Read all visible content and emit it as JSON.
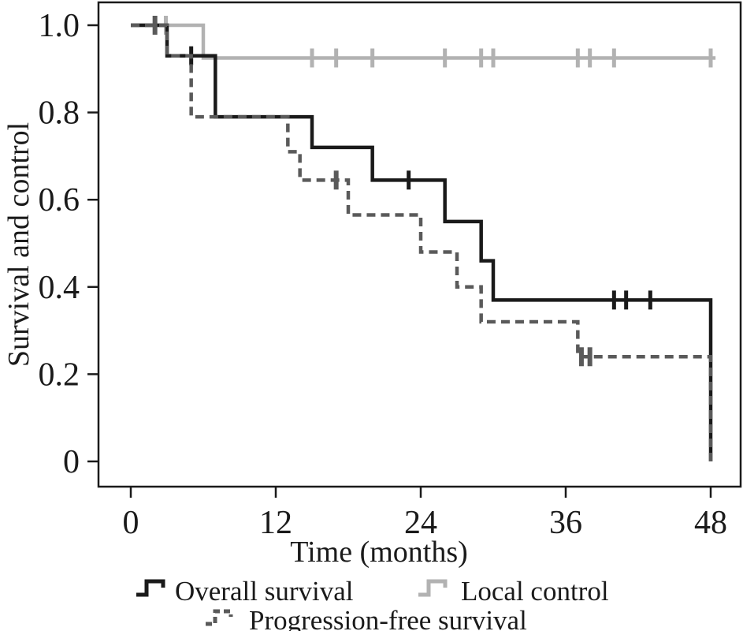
{
  "figure": {
    "background": "#ffffff",
    "colors": {
      "overall_survival": "#1a1a1a",
      "local_control": "#b2b2b2",
      "progression_free_survival": "#5a5a5a"
    }
  },
  "chart_data": {
    "type": "line",
    "subtype": "kaplan-meier-step",
    "title": "",
    "xlabel": "Time (months)",
    "ylabel": "Survival and control",
    "xlim": [
      0,
      48
    ],
    "ylim": [
      0,
      1.0
    ],
    "grid": false,
    "legend_position": "bottom",
    "x_ticks": [
      {
        "value": 0,
        "label": "0"
      },
      {
        "value": 12,
        "label": "12"
      },
      {
        "value": 24,
        "label": "24"
      },
      {
        "value": 36,
        "label": "36"
      },
      {
        "value": 48,
        "label": "48"
      }
    ],
    "y_ticks": [
      {
        "value": 1.0,
        "label": "1.0"
      },
      {
        "value": 0.8,
        "label": "0.8"
      },
      {
        "value": 0.6,
        "label": "0.6"
      },
      {
        "value": 0.4,
        "label": "0.4"
      },
      {
        "value": 0.2,
        "label": "0.2"
      },
      {
        "value": 0.0,
        "label": "0"
      }
    ],
    "series": [
      {
        "name": "Local control",
        "style": "solid",
        "color": "#b2b2b2",
        "line_width": 4.5,
        "censor_width": 5,
        "end_t": 48.4,
        "steps": [
          [
            0,
            1.0
          ],
          [
            6,
            0.925
          ]
        ],
        "censor_marks": [
          [
            2.9,
            1.0
          ],
          [
            15,
            0.925
          ],
          [
            17,
            0.925
          ],
          [
            20,
            0.925
          ],
          [
            26,
            0.925
          ],
          [
            29,
            0.925
          ],
          [
            30,
            0.925
          ],
          [
            37,
            0.925
          ],
          [
            38,
            0.925
          ],
          [
            40,
            0.925
          ],
          [
            48,
            0.925
          ]
        ]
      },
      {
        "name": "Overall survival",
        "style": "solid",
        "color": "#1a1a1a",
        "line_width": 4.5,
        "censor_width": 5,
        "end_t": 48,
        "steps": [
          [
            0,
            1.0
          ],
          [
            3,
            0.93
          ],
          [
            7,
            0.79
          ],
          [
            15,
            0.72
          ],
          [
            20,
            0.645
          ],
          [
            26,
            0.55
          ],
          [
            29,
            0.46
          ],
          [
            30,
            0.37
          ],
          [
            48,
            0.0
          ]
        ],
        "censor_marks": [
          [
            5,
            0.93
          ],
          [
            23,
            0.645
          ],
          [
            40,
            0.37
          ],
          [
            41,
            0.37
          ],
          [
            43,
            0.37
          ]
        ]
      },
      {
        "name": "Progression-free survival",
        "style": "dashed",
        "color": "#5a5a5a",
        "line_width": 4.5,
        "censor_width": 6,
        "end_t": 48,
        "steps": [
          [
            0,
            1.0
          ],
          [
            3,
            0.93
          ],
          [
            5,
            0.79
          ],
          [
            13,
            0.71
          ],
          [
            14,
            0.645
          ],
          [
            18,
            0.565
          ],
          [
            24,
            0.48
          ],
          [
            27,
            0.4
          ],
          [
            29,
            0.32
          ],
          [
            37,
            0.24
          ],
          [
            48,
            0.0
          ]
        ],
        "censor_marks": [
          [
            2,
            1.0
          ],
          [
            17,
            0.645
          ],
          [
            37.3,
            0.24
          ],
          [
            38,
            0.24
          ]
        ]
      }
    ],
    "legend": [
      {
        "label": "Overall survival",
        "series": 1
      },
      {
        "label": "Local control",
        "series": 0
      },
      {
        "label": "Progression-free survival",
        "series": 2
      }
    ]
  }
}
